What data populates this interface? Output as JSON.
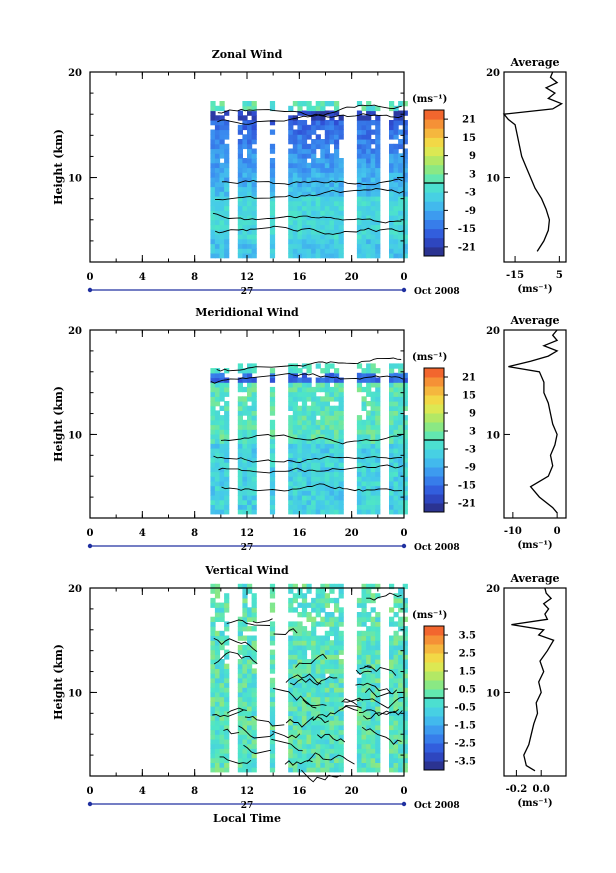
{
  "xlabel": "Local Time",
  "date_label": "27",
  "month_label": "Oct 2008",
  "unit_label": "(ms⁻¹)",
  "colorbar_unit": "(ms⁻¹)",
  "colors": {
    "stops": [
      "#2a2a7a",
      "#2f4fd6",
      "#3a8cf0",
      "#45c8ec",
      "#4ee6c6",
      "#9ee86e",
      "#f0e84a",
      "#f6a63a",
      "#f0502a"
    ]
  },
  "chart_data": [
    {
      "type": "heatmap",
      "title": "Zonal Wind",
      "ylabel": "Height (km)",
      "x_ticks": [
        "0",
        "4",
        "8",
        "12",
        "16",
        "20",
        "0"
      ],
      "x_range": [
        0,
        24
      ],
      "y_ticks": [
        "20",
        "10"
      ],
      "y_range": [
        2,
        20
      ],
      "colorbar_ticks": [
        "21",
        "15",
        "9",
        "3",
        "-3",
        "-9",
        "-15",
        "-21"
      ],
      "colorbar_range": [
        -24,
        24
      ],
      "data_gaps": [
        [
          10.8,
          11.2
        ],
        [
          12.8,
          13.6
        ],
        [
          14.1,
          14.8
        ],
        [
          19.7,
          20.1
        ],
        [
          22.2,
          22.6
        ]
      ],
      "data_start_hour": 9.2,
      "average_profile": {
        "title": "Average",
        "x_ticks": [
          "-15",
          "5"
        ],
        "x_range": [
          -20,
          8
        ],
        "xlabel": "(ms⁻¹)",
        "y_ticks": [
          "20",
          "10"
        ],
        "heights": [
          3,
          4,
          5,
          6,
          7,
          8,
          9,
          10,
          11,
          12,
          13,
          14,
          15,
          15.5,
          16,
          16.5,
          17,
          17.5,
          18,
          18.5,
          19,
          19.5,
          20
        ],
        "values": [
          -5,
          -2,
          0,
          0.5,
          -1,
          -3,
          -6,
          -8,
          -10,
          -12,
          -13,
          -14,
          -15,
          -18,
          -20,
          2,
          6,
          0,
          3,
          -1,
          4,
          1,
          2
        ]
      }
    },
    {
      "type": "heatmap",
      "title": "Meridional Wind",
      "ylabel": "Height (km)",
      "x_ticks": [
        "0",
        "4",
        "8",
        "12",
        "16",
        "20",
        "0"
      ],
      "x_range": [
        0,
        24
      ],
      "y_ticks": [
        "20",
        "10"
      ],
      "y_range": [
        2,
        20
      ],
      "colorbar_ticks": [
        "21",
        "15",
        "9",
        "3",
        "-3",
        "-9",
        "-15",
        "-21"
      ],
      "colorbar_range": [
        -24,
        24
      ],
      "data_gaps": [
        [
          10.8,
          11.2
        ],
        [
          12.8,
          13.6
        ],
        [
          14.1,
          14.8
        ],
        [
          19.7,
          20.1
        ],
        [
          22.2,
          22.6
        ]
      ],
      "data_start_hour": 9.2,
      "average_profile": {
        "title": "Average",
        "x_ticks": [
          "-10",
          "0"
        ],
        "x_range": [
          -12,
          2
        ],
        "xlabel": "(ms⁻¹)",
        "y_ticks": [
          "20",
          "10"
        ],
        "heights": [
          2.5,
          3,
          4,
          5,
          6,
          7,
          8,
          9,
          10,
          11,
          12,
          13,
          14,
          15,
          16,
          16.5,
          17,
          17.5,
          18,
          18.5,
          19,
          19.5,
          20
        ],
        "values": [
          0,
          -1,
          -4,
          -6,
          -2,
          -1,
          -1.5,
          -0.5,
          0,
          -1,
          -1.5,
          -2,
          -3,
          -3,
          -4,
          -11,
          -6,
          -2,
          0,
          -3,
          0,
          -1,
          0
        ]
      }
    },
    {
      "type": "heatmap",
      "title": "Vertical Wind",
      "ylabel": "Height (km)",
      "x_ticks": [
        "0",
        "4",
        "8",
        "12",
        "16",
        "20",
        "0"
      ],
      "x_range": [
        0,
        24
      ],
      "y_ticks": [
        "20",
        "10"
      ],
      "y_range": [
        2,
        20
      ],
      "colorbar_ticks": [
        "3.5",
        "2.5",
        "1.5",
        "0.5",
        "-0.5",
        "-1.5",
        "-2.5",
        "-3.5"
      ],
      "colorbar_range": [
        -4,
        4
      ],
      "data_gaps": [
        [
          10.8,
          11.2
        ],
        [
          12.8,
          13.6
        ],
        [
          14.1,
          14.8
        ],
        [
          19.7,
          20.1
        ],
        [
          22.2,
          22.6
        ]
      ],
      "data_start_hour": 9.2,
      "average_profile": {
        "title": "Average",
        "x_ticks": [
          "-0.2",
          "0.0"
        ],
        "x_range": [
          -0.3,
          0.2
        ],
        "xlabel": "(ms⁻¹)",
        "y_ticks": [
          "20",
          "10"
        ],
        "heights": [
          2.5,
          3,
          4,
          5,
          6,
          7,
          8,
          9,
          10,
          11,
          12,
          13,
          14,
          15,
          15.5,
          16,
          16.5,
          17,
          17.5,
          18,
          18.5,
          19,
          19.5,
          20
        ],
        "values": [
          -0.05,
          -0.12,
          -0.14,
          -0.1,
          -0.08,
          -0.06,
          -0.03,
          -0.04,
          0.0,
          -0.02,
          0.02,
          -0.01,
          0.05,
          0.1,
          -0.02,
          0.02,
          -0.24,
          0.05,
          0.03,
          0.06,
          0.02,
          0.08,
          0.04,
          0.03
        ]
      }
    }
  ]
}
